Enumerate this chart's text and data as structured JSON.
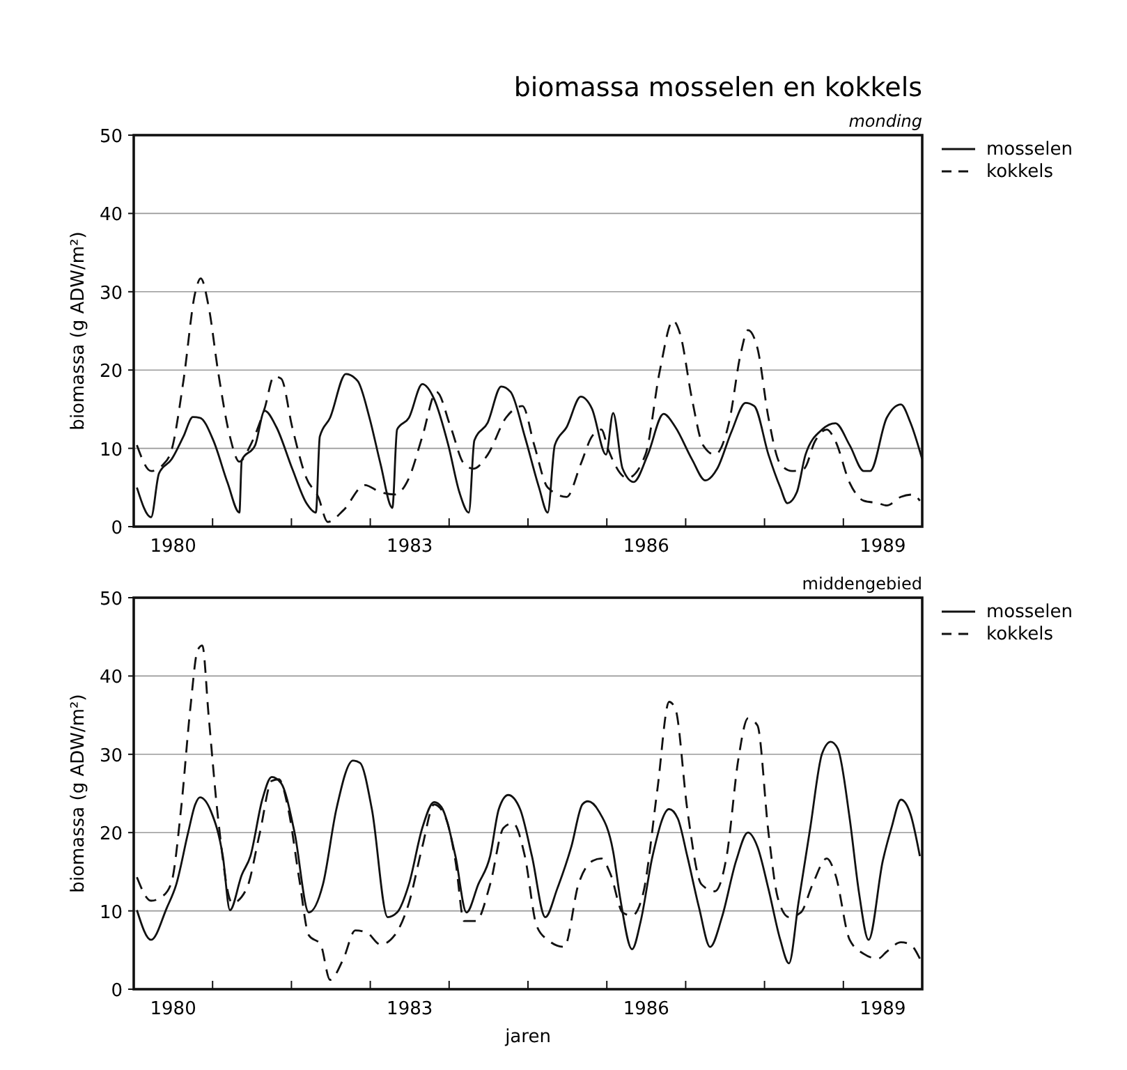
{
  "chart_data": [
    {
      "type": "line",
      "title": "biomassa mosselen en kokkels",
      "subtitle": "monding",
      "ylabel": "biomassa (g ADW/m²)",
      "xlim": [
        1980,
        1990
      ],
      "xticks": [
        {
          "value": 1980.5,
          "label": "1980"
        },
        {
          "value": 1983.5,
          "label": "1983"
        },
        {
          "value": 1986.5,
          "label": "1986"
        },
        {
          "value": 1989.5,
          "label": "1989"
        }
      ],
      "ylim": [
        0,
        50
      ],
      "yticks": [
        0,
        10,
        20,
        30,
        40,
        50
      ],
      "grid": "y",
      "legend": "top right",
      "series": [
        {
          "name": "mosselen",
          "color": "#111111",
          "line_style": "solid",
          "x": [
            1980.04,
            1980.22,
            1980.32,
            1980.48,
            1980.63,
            1980.75,
            1980.84,
            1981.01,
            1981.19,
            1981.34,
            1981.37,
            1981.54,
            1981.66,
            1981.81,
            1982.01,
            1982.19,
            1982.31,
            1982.36,
            1982.49,
            1982.69,
            1982.84,
            1982.99,
            1983.13,
            1983.28,
            1983.34,
            1983.49,
            1983.66,
            1983.81,
            1983.99,
            1984.13,
            1984.25,
            1984.32,
            1984.49,
            1984.66,
            1984.78,
            1984.96,
            1985.14,
            1985.25,
            1985.34,
            1985.49,
            1985.67,
            1985.81,
            1985.99,
            1986.08,
            1986.2,
            1986.34,
            1986.52,
            1986.72,
            1986.87,
            1987.08,
            1987.25,
            1987.4,
            1987.58,
            1987.76,
            1987.87,
            1988.05,
            1988.2,
            1988.29,
            1988.41,
            1988.52,
            1988.73,
            1988.9,
            1989.08,
            1989.26,
            1989.34,
            1989.55,
            1989.73,
            1989.85,
            1990.0
          ],
          "values": [
            5,
            1.2,
            6.8,
            8.6,
            11.5,
            14,
            13.9,
            11,
            5.6,
            1.8,
            8.5,
            10.4,
            14.8,
            12.7,
            7.4,
            3,
            1.8,
            11.5,
            13.9,
            19.5,
            18.6,
            13.9,
            8,
            2.4,
            12.4,
            13.9,
            18.2,
            16.3,
            10.4,
            4.4,
            1.8,
            11,
            13.3,
            17.9,
            17.2,
            11.5,
            5,
            1.8,
            10.4,
            12.7,
            16.6,
            15.1,
            9.2,
            14.5,
            7.4,
            5.7,
            9.2,
            14.4,
            12.7,
            8.6,
            5.9,
            7.4,
            12.1,
            15.8,
            15.4,
            9.2,
            5,
            3,
            4.4,
            9.2,
            12.4,
            13.2,
            10.4,
            7.1,
            7.1,
            13.9,
            15.6,
            13.3,
            8.6
          ]
        },
        {
          "name": "kokkels",
          "color": "#111111",
          "line_style": "dashed",
          "x": [
            1980.04,
            1980.22,
            1980.37,
            1980.48,
            1980.63,
            1980.78,
            1980.85,
            1980.95,
            1981.07,
            1981.22,
            1981.34,
            1981.48,
            1981.66,
            1981.78,
            1981.87,
            1982.01,
            1982.19,
            1982.34,
            1982.46,
            1982.66,
            1982.93,
            1983.13,
            1983.31,
            1983.49,
            1983.66,
            1983.84,
            1984.02,
            1984.19,
            1984.31,
            1984.49,
            1984.72,
            1984.93,
            1985.08,
            1985.25,
            1985.49,
            1985.67,
            1985.81,
            1985.93,
            1986.02,
            1986.26,
            1986.49,
            1986.67,
            1986.84,
            1986.93,
            1987.08,
            1987.22,
            1987.37,
            1987.55,
            1987.7,
            1987.79,
            1987.91,
            1988.05,
            1988.2,
            1988.35,
            1988.5,
            1988.64,
            1988.79,
            1988.9,
            1989.08,
            1989.26,
            1989.44,
            1989.55,
            1989.73,
            1989.88,
            1989.97
          ],
          "values": [
            10.4,
            7.1,
            7.9,
            9.8,
            18.6,
            29.9,
            31.7,
            28.1,
            19.8,
            11.5,
            8.3,
            10.4,
            15.1,
            19.2,
            18.9,
            12.7,
            6.2,
            3.8,
            0.6,
            2.1,
            5.3,
            4.4,
            4.1,
            6.2,
            11.5,
            17.2,
            12.7,
            8,
            7.4,
            9.2,
            13.9,
            15.4,
            10.4,
            5,
            3.8,
            8,
            11.5,
            12.4,
            9.8,
            6.2,
            9.2,
            19.8,
            26.3,
            24.6,
            16.3,
            10.4,
            9.2,
            13.3,
            22.2,
            25.1,
            22.8,
            13.9,
            8,
            7.1,
            7.4,
            10.9,
            12.4,
            10.9,
            5.6,
            3.3,
            3,
            2.7,
            3.8,
            4.1,
            3.3
          ]
        }
      ]
    },
    {
      "type": "line",
      "subtitle": "middengebied",
      "xlabel": "jaren",
      "ylabel": "biomassa (g ADW/m²)",
      "xlim": [
        1980,
        1990
      ],
      "xticks": [
        {
          "value": 1980.5,
          "label": "1980"
        },
        {
          "value": 1983.5,
          "label": "1983"
        },
        {
          "value": 1986.5,
          "label": "1986"
        },
        {
          "value": 1989.5,
          "label": "1989"
        }
      ],
      "ylim": [
        0,
        50
      ],
      "yticks": [
        0,
        10,
        20,
        30,
        40,
        50
      ],
      "grid": "y",
      "legend": "top right",
      "series": [
        {
          "name": "mosselen",
          "color": "#111111",
          "line_style": "solid",
          "x": [
            1980.04,
            1980.22,
            1980.42,
            1980.54,
            1980.69,
            1980.78,
            1980.84,
            1980.98,
            1981.13,
            1981.22,
            1981.37,
            1981.48,
            1981.63,
            1981.75,
            1981.87,
            1982.04,
            1982.22,
            1982.4,
            1982.57,
            1982.78,
            1982.87,
            1983.02,
            1983.22,
            1983.34,
            1983.49,
            1983.66,
            1983.81,
            1983.9,
            1984.08,
            1984.22,
            1984.37,
            1984.52,
            1984.63,
            1984.75,
            1984.9,
            1985.05,
            1985.22,
            1985.37,
            1985.55,
            1985.69,
            1985.76,
            1985.9,
            1986.08,
            1986.17,
            1986.32,
            1986.43,
            1986.58,
            1986.79,
            1986.9,
            1987.02,
            1987.17,
            1987.31,
            1987.46,
            1987.64,
            1987.79,
            1987.91,
            1988.05,
            1988.2,
            1988.31,
            1988.43,
            1988.58,
            1988.73,
            1988.84,
            1988.93,
            1989.08,
            1989.2,
            1989.32,
            1989.5,
            1989.61,
            1989.73,
            1989.85,
            1989.97
          ],
          "values": [
            10.1,
            6.3,
            10.4,
            13.4,
            20,
            23.6,
            24.5,
            22.7,
            17,
            10.1,
            14.6,
            17,
            24.2,
            27.1,
            26.3,
            20,
            9.8,
            13.4,
            23,
            29.2,
            28.9,
            23,
            9.2,
            9.8,
            13.4,
            20.6,
            23.9,
            23.3,
            17,
            9.8,
            13.4,
            17,
            23,
            24.8,
            23,
            17,
            9.2,
            12.8,
            18.2,
            23.6,
            24,
            22.7,
            17.6,
            11.6,
            5.1,
            8.7,
            17,
            23,
            21.8,
            17,
            10.4,
            5.4,
            9.2,
            16.4,
            20,
            18.2,
            12.8,
            6.3,
            3.3,
            11,
            20.6,
            30.1,
            31.6,
            30.7,
            21.8,
            12.2,
            6.3,
            16.4,
            20.6,
            24.2,
            22.4,
            17
          ]
        },
        {
          "name": "kokkels",
          "color": "#111111",
          "line_style": "dashed",
          "x": [
            1980.04,
            1980.22,
            1980.37,
            1980.48,
            1980.6,
            1980.72,
            1980.81,
            1980.87,
            1980.95,
            1981.07,
            1981.25,
            1981.43,
            1981.6,
            1981.75,
            1981.84,
            1981.96,
            1982.1,
            1982.22,
            1982.37,
            1982.49,
            1982.66,
            1982.81,
            1982.96,
            1983.13,
            1983.31,
            1983.49,
            1983.66,
            1983.81,
            1983.96,
            1984.08,
            1984.19,
            1984.34,
            1984.52,
            1984.69,
            1984.81,
            1984.96,
            1985.11,
            1985.25,
            1985.46,
            1985.64,
            1985.82,
            1985.93,
            1986.05,
            1986.2,
            1986.32,
            1986.46,
            1986.64,
            1986.79,
            1986.87,
            1987.02,
            1987.2,
            1987.37,
            1987.52,
            1987.67,
            1987.79,
            1987.91,
            1988.05,
            1988.17,
            1988.31,
            1988.46,
            1988.61,
            1988.79,
            1988.9,
            1989.08,
            1989.26,
            1989.44,
            1989.55,
            1989.73,
            1989.85,
            1989.97
          ],
          "values": [
            14.3,
            11.3,
            11.9,
            13.7,
            23,
            36.1,
            43.3,
            43.9,
            34.9,
            21.8,
            11,
            12.8,
            20,
            26.6,
            26.8,
            23,
            14,
            6.9,
            5.7,
            1.2,
            3.9,
            7.5,
            7.2,
            5.7,
            6.9,
            11,
            18.2,
            23.6,
            21.8,
            16.4,
            8.7,
            8.7,
            13.4,
            20.6,
            21.2,
            17,
            8.1,
            6.3,
            5.4,
            13.4,
            16.4,
            16.7,
            14.6,
            9.8,
            9.4,
            12.2,
            25.4,
            36.7,
            35.8,
            23,
            13.4,
            12.5,
            17,
            29.5,
            34.6,
            33.7,
            20,
            11.6,
            9.2,
            9.8,
            13.4,
            16.7,
            14.6,
            6.3,
            4.5,
            3.9,
            4.8,
            6,
            5.7,
            3.9
          ]
        }
      ]
    }
  ]
}
